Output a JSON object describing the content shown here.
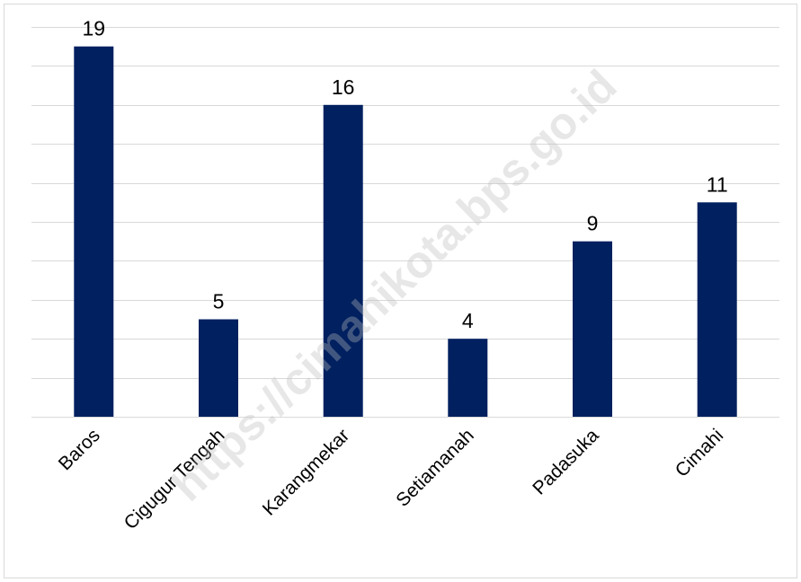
{
  "chart_data": {
    "type": "bar",
    "categories": [
      "Baros",
      "Cigugur Tengah",
      "Karangmekar",
      "Setiamanah",
      "Padasuka",
      "Cimahi"
    ],
    "values": [
      19,
      5,
      16,
      4,
      9,
      11
    ],
    "title": "",
    "xlabel": "",
    "ylabel": "",
    "ylim": [
      0,
      20
    ],
    "grid": true,
    "legend": "none",
    "bar_color": "#002060",
    "watermark": "https://cimahikota.bps.go.id"
  }
}
